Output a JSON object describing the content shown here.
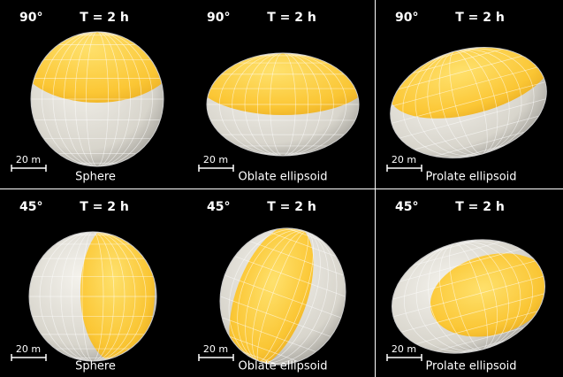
{
  "panels": [
    {
      "angle": "90°",
      "time": "T = 2 h",
      "scale": "20 m",
      "shape": "Sphere"
    },
    {
      "angle": "90°",
      "time": "T = 2 h",
      "scale": "20 m",
      "shape": "Oblate ellipsoid"
    },
    {
      "angle": "90°",
      "time": "T = 2 h",
      "scale": "20 m",
      "shape": "Prolate ellipsoid"
    },
    {
      "angle": "45°",
      "time": "T = 2 h",
      "scale": "20 m",
      "shape": "Sphere"
    },
    {
      "angle": "45°",
      "time": "T = 2 h",
      "scale": "20 m",
      "shape": "Oblate ellipsoid"
    },
    {
      "angle": "45°",
      "time": "T = 2 h",
      "scale": "20 m",
      "shape": "Prolate ellipsoid"
    }
  ]
}
